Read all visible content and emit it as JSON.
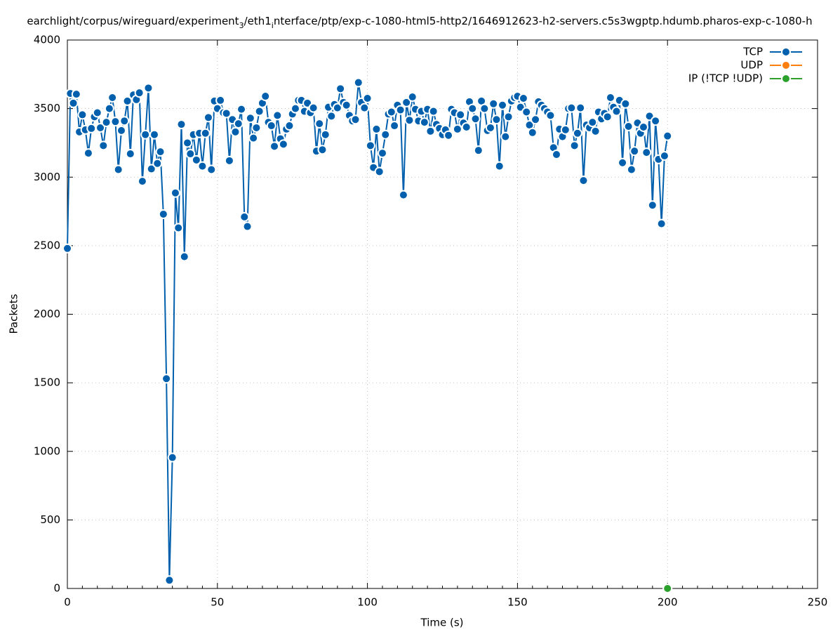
{
  "chart_data": {
    "type": "line",
    "title": [
      {
        "text": "earchlight/corpus/wireguard/experiment"
      },
      {
        "text": "3",
        "sub": true
      },
      {
        "text": "/eth1"
      },
      {
        "text": "i",
        "sub": true
      },
      {
        "text": "nterface/ptp/exp-c-1080-html5-http2/1646912623-h2-servers.c5s3wgptp.hdumb.pharos-exp-c-1080-h"
      }
    ],
    "xlabel": "Time (s)",
    "ylabel": "Packets",
    "xlim": [
      0,
      250
    ],
    "xticks": [
      0,
      50,
      100,
      150,
      200,
      250
    ],
    "ylim": [
      0,
      4000
    ],
    "yticks": [
      0,
      500,
      1000,
      1500,
      2000,
      2500,
      3000,
      3500,
      4000
    ],
    "grid": true,
    "legend": "top-right",
    "series": [
      {
        "name": "TCP",
        "color": "#0060ad",
        "x": [
          0,
          1,
          2,
          3,
          4,
          5,
          6,
          7,
          8,
          9,
          10,
          11,
          12,
          13,
          14,
          15,
          16,
          17,
          18,
          19,
          20,
          21,
          22,
          23,
          24,
          25,
          26,
          27,
          28,
          29,
          30,
          31,
          32,
          33,
          34,
          35,
          36,
          37,
          38,
          39,
          40,
          41,
          42,
          43,
          44,
          45,
          46,
          47,
          48,
          49,
          50,
          51,
          52,
          53,
          54,
          55,
          56,
          57,
          58,
          59,
          60,
          61,
          62,
          63,
          64,
          65,
          66,
          67,
          68,
          69,
          70,
          71,
          72,
          73,
          74,
          75,
          76,
          77,
          78,
          79,
          80,
          81,
          82,
          83,
          84,
          85,
          86,
          87,
          88,
          89,
          90,
          91,
          92,
          93,
          94,
          95,
          96,
          97,
          98,
          99,
          100,
          101,
          102,
          103,
          104,
          105,
          106,
          107,
          108,
          109,
          110,
          111,
          112,
          113,
          114,
          115,
          116,
          117,
          118,
          119,
          120,
          121,
          122,
          123,
          124,
          125,
          126,
          127,
          128,
          129,
          130,
          131,
          132,
          133,
          134,
          135,
          136,
          137,
          138,
          139,
          140,
          141,
          142,
          143,
          144,
          145,
          146,
          147,
          148,
          149,
          150,
          151,
          152,
          153,
          154,
          155,
          156,
          157,
          158,
          159,
          160,
          161,
          162,
          163,
          164,
          165,
          166,
          167,
          168,
          169,
          170,
          171,
          172,
          173,
          174,
          175,
          176,
          177,
          178,
          179,
          180,
          181,
          182,
          183,
          184,
          185,
          186,
          187,
          188,
          189,
          190,
          191,
          192,
          193,
          194,
          195,
          196,
          197,
          198,
          199,
          200
        ],
        "values": [
          2480,
          3610,
          3540,
          3605,
          3330,
          3455,
          3345,
          3175,
          3355,
          3440,
          3470,
          3360,
          3230,
          3400,
          3500,
          3580,
          3405,
          3055,
          3340,
          3410,
          3555,
          3170,
          3600,
          3565,
          3615,
          2970,
          3310,
          3650,
          3060,
          3310,
          3100,
          3185,
          2730,
          1530,
          60,
          955,
          2885,
          2630,
          3385,
          2420,
          3250,
          3170,
          3310,
          3125,
          3320,
          3080,
          3320,
          3435,
          3055,
          3555,
          3500,
          3560,
          3470,
          3465,
          3120,
          3420,
          3330,
          3390,
          3495,
          2710,
          2640,
          3430,
          3285,
          3360,
          3480,
          3540,
          3590,
          3400,
          3375,
          3225,
          3450,
          3280,
          3240,
          3350,
          3375,
          3460,
          3500,
          3560,
          3560,
          3480,
          3540,
          3470,
          3505,
          3190,
          3390,
          3200,
          3310,
          3510,
          3445,
          3530,
          3505,
          3645,
          3545,
          3525,
          3450,
          3410,
          3420,
          3690,
          3545,
          3505,
          3575,
          3230,
          3070,
          3350,
          3040,
          3175,
          3310,
          3460,
          3475,
          3375,
          3525,
          3490,
          2870,
          3545,
          3415,
          3585,
          3495,
          3410,
          3480,
          3400,
          3495,
          3335,
          3480,
          3385,
          3355,
          3310,
          3345,
          3305,
          3495,
          3470,
          3350,
          3455,
          3395,
          3365,
          3550,
          3500,
          3425,
          3195,
          3555,
          3500,
          3340,
          3360,
          3535,
          3420,
          3080,
          3525,
          3295,
          3440,
          3555,
          3580,
          3590,
          3510,
          3575,
          3475,
          3380,
          3325,
          3420,
          3550,
          3525,
          3500,
          3475,
          3450,
          3215,
          3165,
          3350,
          3295,
          3345,
          3500,
          3505,
          3230,
          3320,
          3505,
          2975,
          3380,
          3360,
          3400,
          3335,
          3475,
          3425,
          3465,
          3440,
          3580,
          3510,
          3480,
          3560,
          3105,
          3535,
          3370,
          3055,
          3190,
          3395,
          3320,
          3365,
          3180,
          3445,
          2795,
          3410,
          3130,
          2660,
          3155,
          3300
        ]
      },
      {
        "name": "UDP",
        "color": "#ff7f0e",
        "x": [
          200
        ],
        "values": [
          0
        ]
      },
      {
        "name": "IP (!TCP  !UDP)",
        "color": "#2ca02c",
        "x": [
          200
        ],
        "values": [
          0
        ]
      }
    ]
  }
}
